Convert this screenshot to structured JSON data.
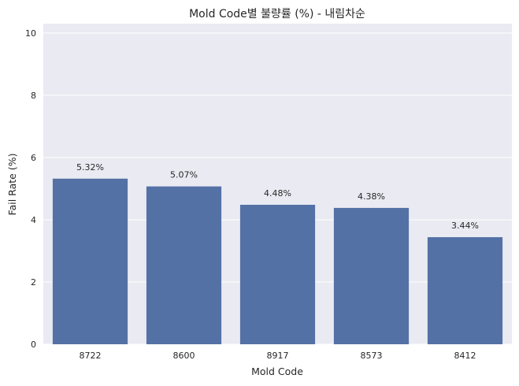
{
  "chart_data": {
    "type": "bar",
    "title": "Mold Code별 불량률 (%) - 내림차순",
    "xlabel": "Mold Code",
    "ylabel": "Fail Rate (%)",
    "categories": [
      "8722",
      "8600",
      "8917",
      "8573",
      "8412"
    ],
    "values": [
      5.32,
      5.07,
      4.48,
      4.38,
      3.44
    ],
    "data_labels": [
      "5.32%",
      "5.07%",
      "4.48%",
      "4.38%",
      "3.44%"
    ],
    "yticks": [
      0,
      2,
      4,
      6,
      8,
      10
    ],
    "ylim": [
      0,
      10.3
    ],
    "grid": true,
    "colors": {
      "bar": "#5471a6",
      "background": "#eaeaf2",
      "grid": "#ffffff"
    }
  }
}
